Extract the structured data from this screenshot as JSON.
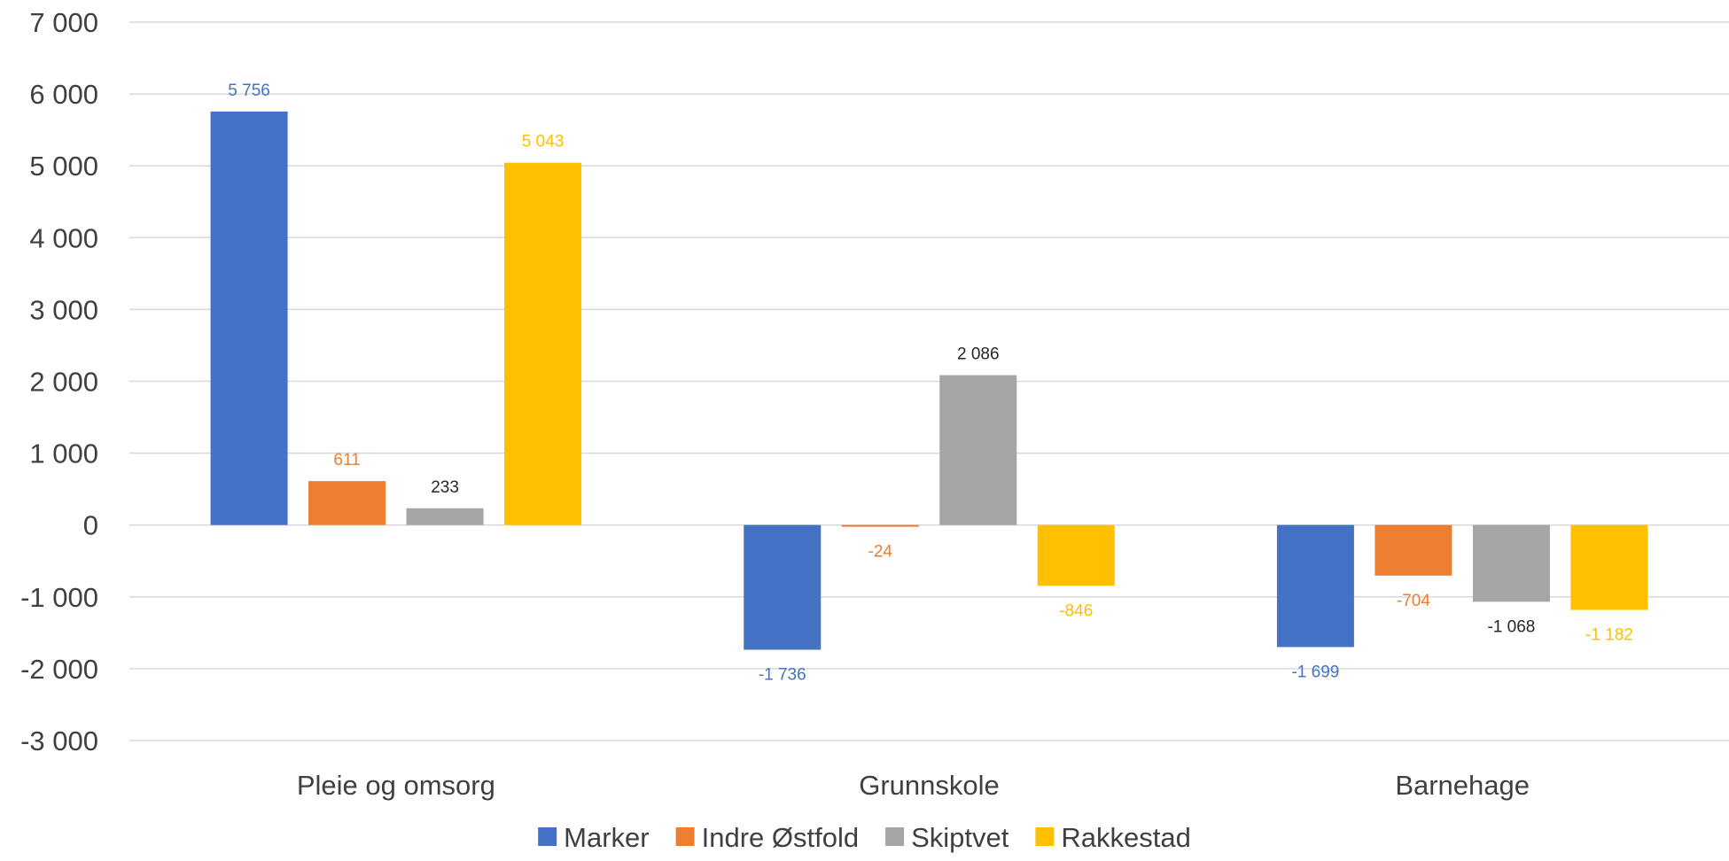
{
  "chart_data": {
    "type": "bar",
    "categories": [
      "Pleie og omsorg",
      "Grunnskole",
      "Barnehage"
    ],
    "series": [
      {
        "name": "Marker",
        "color": "#4472C4",
        "values": [
          5756,
          -1736,
          -1699
        ],
        "labels": [
          "5 756",
          "-1 736",
          "-1 699"
        ]
      },
      {
        "name": "Indre Østfold",
        "color": "#ED7D31",
        "values": [
          611,
          -24,
          -704
        ],
        "labels": [
          "611",
          "-24",
          "-704"
        ]
      },
      {
        "name": "Skiptvet",
        "color": "#A5A5A5",
        "label_color": "#262626",
        "values": [
          233,
          2086,
          -1068
        ],
        "labels": [
          "233",
          "2 086",
          "-1 068"
        ]
      },
      {
        "name": "Rakkestad",
        "color": "#FFC000",
        "values": [
          5043,
          -846,
          -1182
        ],
        "labels": [
          "5 043",
          "-846",
          "-1 182"
        ]
      }
    ],
    "ylim": [
      -3000,
      7000
    ],
    "yticks": [
      7000,
      6000,
      5000,
      4000,
      3000,
      2000,
      1000,
      0,
      -1000,
      -2000,
      -3000
    ],
    "ytick_labels": [
      "7 000",
      "6 000",
      "5 000",
      "4 000",
      "3 000",
      "2 000",
      "1 000",
      "0",
      "-1 000",
      "-2 000",
      "-3 000"
    ],
    "grid": true,
    "legend": "bottom"
  }
}
